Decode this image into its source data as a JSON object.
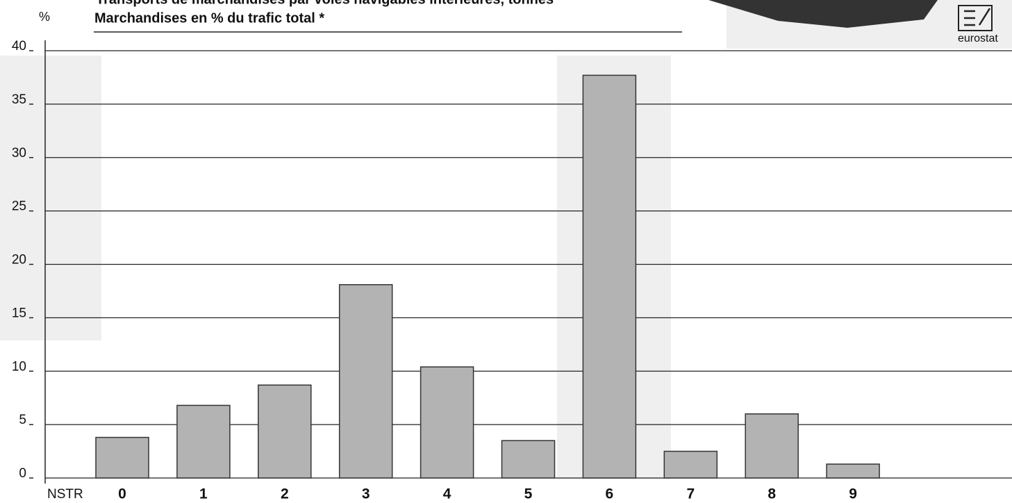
{
  "chart_data": {
    "type": "bar",
    "title": "Transports de marchandises par voies navigables intérieures, tonnes",
    "subtitle": "Marchandises en % du trafic total *",
    "y_label": "%",
    "x_label": "NSTR",
    "logo_text": "eurostat",
    "categories": [
      "0",
      "1",
      "2",
      "3",
      "4",
      "5",
      "6",
      "7",
      "8",
      "9"
    ],
    "values": [
      3.8,
      6.8,
      8.7,
      18.1,
      10.4,
      3.5,
      37.7,
      2.5,
      6.0,
      1.3
    ],
    "color": "#b3b3b3",
    "ylim": [
      0,
      40
    ],
    "yticks": [
      0,
      5,
      10,
      15,
      20,
      25,
      30,
      35,
      40
    ],
    "grid": true
  }
}
